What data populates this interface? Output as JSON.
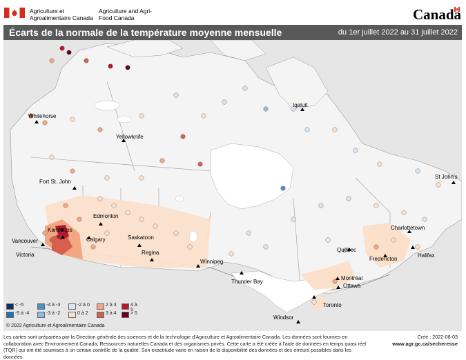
{
  "header": {
    "org_fr": "Agriculture et Agroalimentaire Canada",
    "org_en": "Agriculture and Agri-Food Canada",
    "wordmark": "Canada"
  },
  "titlebar": {
    "title": "Écarts de la normale de la température moyenne mensuelle",
    "period": "du 1er juillet 2022 au 31 juillet 2022"
  },
  "map": {
    "cities": [
      {
        "name": "Whitehorse",
        "id": "whitehorse"
      },
      {
        "name": "Yellowknife",
        "id": "yellowknife"
      },
      {
        "name": "Iqaluit",
        "id": "iqaluit"
      },
      {
        "name": "Fort St. John",
        "id": "fort-st-john"
      },
      {
        "name": "Edmonton",
        "id": "edmonton"
      },
      {
        "name": "Kamloops",
        "id": "kamloops"
      },
      {
        "name": "Calgary",
        "id": "calgary"
      },
      {
        "name": "Saskatoon",
        "id": "saskatoon"
      },
      {
        "name": "Regina",
        "id": "regina"
      },
      {
        "name": "Vancouver",
        "id": "vancouver"
      },
      {
        "name": "Victoria",
        "id": "victoria"
      },
      {
        "name": "Winnipeg",
        "id": "winnipeg"
      },
      {
        "name": "Thunder Bay",
        "id": "thunder-bay"
      },
      {
        "name": "Québec",
        "id": "quebec"
      },
      {
        "name": "Montréal",
        "id": "montreal"
      },
      {
        "name": "Ottawa",
        "id": "ottawa"
      },
      {
        "name": "Toronto",
        "id": "toronto"
      },
      {
        "name": "Windsor",
        "id": "windsor"
      },
      {
        "name": "Fredericton",
        "id": "fredericton"
      },
      {
        "name": "Charlottetown",
        "id": "charlottetown"
      },
      {
        "name": "Halifax",
        "id": "halifax"
      },
      {
        "name": "St John's",
        "id": "st-johns"
      }
    ]
  },
  "legend": {
    "items": [
      {
        "label": "< -5",
        "color": "#08306b"
      },
      {
        "label": "-5 à -4",
        "color": "#2171b5"
      },
      {
        "label": "-4 à -3",
        "color": "#4a90c8"
      },
      {
        "label": "-3 à -2",
        "color": "#8fbde0"
      },
      {
        "label": "-2 à 0",
        "color": "#d6e6f3"
      },
      {
        "label": "0 à 2",
        "color": "#fbe0cc"
      },
      {
        "label": "2 à 3",
        "color": "#f4a582"
      },
      {
        "label": "3 à 4",
        "color": "#d6604d"
      },
      {
        "label": "4 à 5",
        "color": "#b2182b"
      },
      {
        "label": "> 5",
        "color": "#67001f"
      }
    ]
  },
  "copyright": "© 2022 Agriculture et Agroalimentaire Canada",
  "footer": {
    "text": "Les cartes sont préparées par la Direction générale des sciences et de la technologie d'Agriculture et Agroalimentaire Canada. Les données sont fournies en collaboration avec Environnement Canada, Ressources naturelles Canada et des organismes privés. Cette carte a été créée à l'aide de données en temps quasi réel (TQR) qui ont été soumises à un certain contrôle de la qualité. Son exactitude varie en raison de la disponibilité des données et des erreurs possibles dans les données.",
    "created": "Créé : 2022-08-03",
    "website": "www.agr.gc.ca/secheresse"
  }
}
